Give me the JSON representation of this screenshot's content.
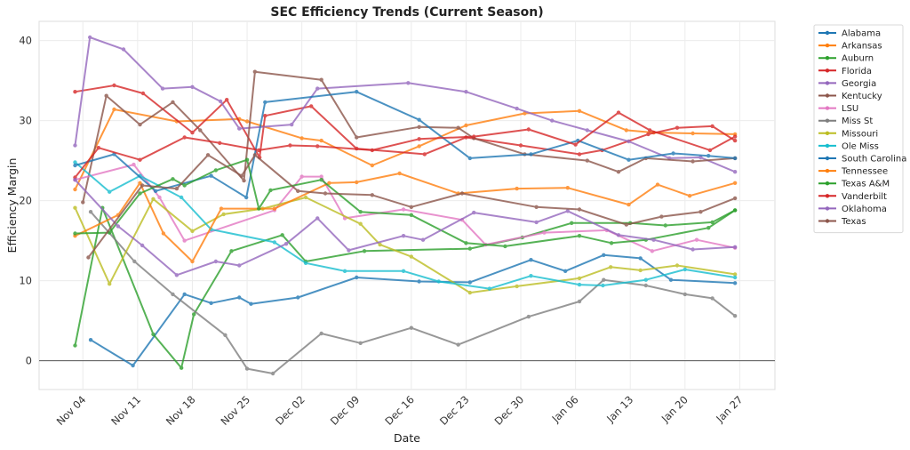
{
  "chart_data": {
    "type": "line",
    "title": "SEC Efficiency Trends (Current Season)",
    "xlabel": "Date",
    "ylabel": "Efficiency Margin",
    "x_unit": "days since Nov 04",
    "xlim": [
      -5.6,
      88.5
    ],
    "ylim": [
      -3.6,
      42.4
    ],
    "yticks": [
      0,
      10,
      20,
      30,
      40
    ],
    "xticks": [
      {
        "day": 0,
        "label": "Nov 04"
      },
      {
        "day": 7,
        "label": "Nov 11"
      },
      {
        "day": 14,
        "label": "Nov 18"
      },
      {
        "day": 21,
        "label": "Nov 25"
      },
      {
        "day": 28,
        "label": "Dec 02"
      },
      {
        "day": 35,
        "label": "Dec 09"
      },
      {
        "day": 42,
        "label": "Dec 16"
      },
      {
        "day": 49,
        "label": "Dec 23"
      },
      {
        "day": 56,
        "label": "Dec 30"
      },
      {
        "day": 63,
        "label": "Jan 06"
      },
      {
        "day": 70,
        "label": "Jan 13"
      },
      {
        "day": 77,
        "label": "Jan 20"
      },
      {
        "day": 84,
        "label": "Jan 27"
      }
    ],
    "grid": true,
    "zero_line": true,
    "legend_position": "outside-top-right",
    "series": [
      {
        "name": "Alabama",
        "color": "#1f77b4",
        "x": [
          1,
          6.4,
          13,
          16.4,
          20,
          21.5,
          27.5,
          35,
          43,
          49.5,
          57.3,
          61.7,
          66.6,
          71.3,
          75.2,
          83.4
        ],
        "y": [
          2.6,
          -0.6,
          8.3,
          7.2,
          7.9,
          7.1,
          7.9,
          10.4,
          9.9,
          9.8,
          12.6,
          11.2,
          13.2,
          12.8,
          10.1,
          9.7
        ]
      },
      {
        "name": "Arkansas",
        "color": "#ff7f0e",
        "x": [
          -1,
          4,
          12,
          20,
          21,
          28,
          30.5,
          37,
          43,
          49,
          56.5,
          63.5,
          69.5,
          73,
          78,
          83.4
        ],
        "y": [
          21.4,
          31.4,
          29.9,
          30.2,
          29.9,
          27.8,
          27.5,
          24.4,
          26.8,
          29.4,
          30.9,
          31.2,
          28.8,
          28.5,
          28.4,
          28.3
        ]
      },
      {
        "name": "Auburn",
        "color": "#2ca02c",
        "x": [
          -1,
          2.5,
          9,
          12.6,
          14.2,
          19,
          25.5,
          28.5,
          36,
          49.5,
          56.2,
          62.5,
          70,
          74.5,
          80.5,
          83.4
        ],
        "y": [
          1.9,
          19.1,
          3.3,
          -0.9,
          5.8,
          13.7,
          15.7,
          12.4,
          13.7,
          14.0,
          15.4,
          17.2,
          17.2,
          16.9,
          17.3,
          18.8
        ]
      },
      {
        "name": "Florida",
        "color": "#d62728",
        "x": [
          -1,
          4,
          7.7,
          14,
          18.4,
          22.6,
          23.3,
          29.2,
          35,
          43.7,
          49,
          56,
          63.5,
          66.4,
          72.3,
          76,
          80.5,
          83.4
        ],
        "y": [
          33.6,
          34.4,
          33.4,
          28.5,
          32.6,
          25.4,
          30.6,
          31.8,
          26.5,
          25.8,
          27.9,
          26.9,
          25.8,
          26.3,
          28.3,
          29.1,
          29.3,
          27.5
        ]
      },
      {
        "name": "Georgia",
        "color": "#9467bd",
        "x": [
          -1,
          0.9,
          5.2,
          10.2,
          14,
          17.6,
          20,
          26.7,
          30,
          41.6,
          49,
          55.5,
          60,
          64.5,
          69.8,
          75,
          79,
          83.4
        ],
        "y": [
          26.9,
          40.4,
          38.9,
          34.0,
          34.2,
          32.4,
          29.0,
          29.5,
          34.0,
          34.7,
          33.6,
          31.5,
          30.0,
          28.8,
          27.4,
          25.3,
          25.4,
          23.6
        ]
      },
      {
        "name": "Kentucky",
        "color": "#8c564b",
        "x": [
          0,
          3,
          7.3,
          11.5,
          15,
          20.6,
          22,
          30.5,
          35,
          43,
          48,
          50,
          56.5,
          64.5,
          68.5,
          72,
          78,
          83.4
        ],
        "y": [
          19.8,
          33.1,
          29.5,
          32.3,
          28.8,
          22.5,
          36.1,
          35.1,
          27.9,
          29.2,
          29.1,
          27.8,
          25.8,
          25.0,
          23.6,
          25.3,
          24.9,
          25.3
        ]
      },
      {
        "name": "LSU",
        "color": "#e377c2",
        "x": [
          -1,
          6.5,
          9.8,
          13,
          24.5,
          28,
          30.5,
          33.5,
          41,
          48.5,
          51.5,
          59,
          67,
          72.8,
          78.5,
          83.4
        ],
        "y": [
          22.6,
          24.5,
          20.4,
          15.0,
          18.8,
          23.0,
          23.0,
          17.8,
          18.9,
          17.6,
          14.5,
          16.0,
          16.3,
          13.7,
          15.1,
          14.1
        ]
      },
      {
        "name": "Miss St",
        "color": "#7f7f7f",
        "x": [
          1,
          6.6,
          11.5,
          18.2,
          21,
          24.3,
          30.5,
          35.5,
          42,
          48,
          57,
          63.5,
          66.6,
          72,
          77,
          80.5,
          83.4
        ],
        "y": [
          18.6,
          12.4,
          8.3,
          3.2,
          -1.0,
          -1.6,
          3.4,
          2.2,
          4.1,
          2.0,
          5.5,
          7.4,
          10.1,
          9.4,
          8.3,
          7.8,
          5.6
        ]
      },
      {
        "name": "Missouri",
        "color": "#bcbd22",
        "x": [
          -1,
          3.4,
          9,
          14,
          18,
          23,
          28.5,
          35.5,
          38,
          42,
          49.5,
          55.5,
          63.5,
          67.5,
          71.3,
          76,
          83.4
        ],
        "y": [
          19.1,
          9.6,
          20.2,
          16.2,
          18.3,
          19.0,
          20.4,
          17.1,
          14.5,
          13.0,
          8.5,
          9.3,
          10.3,
          11.7,
          11.3,
          11.9,
          10.8
        ]
      },
      {
        "name": "Ole Miss",
        "color": "#17becf",
        "x": [
          -1,
          3.4,
          7.3,
          12.6,
          16.4,
          24.5,
          28.5,
          33.5,
          41,
          45.5,
          52,
          57.3,
          63.5,
          66.5,
          72,
          77,
          83.4
        ],
        "y": [
          24.8,
          21.1,
          23.1,
          20.4,
          16.4,
          14.8,
          12.2,
          11.2,
          11.2,
          9.9,
          9.0,
          10.6,
          9.5,
          9.4,
          10.1,
          11.4,
          10.4
        ]
      },
      {
        "name": "South Carolina",
        "color": "#1f77b4",
        "x": [
          -1,
          4,
          9.3,
          16.4,
          20.9,
          23.3,
          35,
          43,
          49.5,
          57.3,
          63.3,
          69.8,
          75.5,
          80,
          83.4
        ],
        "y": [
          24.4,
          25.8,
          21.2,
          23.1,
          20.4,
          32.3,
          33.6,
          30.1,
          25.3,
          25.8,
          27.5,
          25.1,
          25.9,
          25.6,
          25.3
        ]
      },
      {
        "name": "Tennessee",
        "color": "#ff7f0e",
        "x": [
          -1,
          4.5,
          7.3,
          10.3,
          14,
          17.7,
          24.5,
          31.5,
          35,
          40.5,
          48,
          55.5,
          62,
          69.8,
          73.5,
          77.6,
          83.4
        ],
        "y": [
          15.6,
          18.2,
          22.2,
          15.9,
          12.4,
          19.0,
          19.0,
          22.2,
          22.3,
          23.4,
          20.9,
          21.5,
          21.6,
          19.5,
          22.0,
          20.6,
          22.2
        ]
      },
      {
        "name": "Texas A&M",
        "color": "#2ca02c",
        "x": [
          -1,
          3.4,
          7.3,
          11.5,
          13,
          17,
          21,
          22.5,
          24,
          30.5,
          35.5,
          42,
          49,
          54,
          63.5,
          67.6,
          72,
          80,
          83.4
        ],
        "y": [
          15.9,
          16.0,
          20.9,
          22.7,
          21.9,
          23.8,
          25.1,
          19.0,
          21.3,
          22.6,
          18.6,
          18.2,
          14.7,
          14.3,
          15.6,
          14.7,
          15.1,
          16.6,
          18.8
        ]
      },
      {
        "name": "Vanderbilt",
        "color": "#d62728",
        "x": [
          -1,
          2,
          7.3,
          13,
          17.5,
          22.5,
          26.5,
          30,
          37,
          43,
          50,
          57,
          63,
          68.5,
          72.5,
          80.2,
          83.4
        ],
        "y": [
          22.9,
          26.6,
          25.1,
          27.9,
          27.2,
          26.3,
          26.9,
          26.8,
          26.3,
          27.7,
          28.0,
          28.9,
          27.0,
          31.0,
          28.8,
          26.3,
          28.0
        ]
      },
      {
        "name": "Oklahoma",
        "color": "#9467bd",
        "x": [
          -1,
          4.5,
          7.6,
          12,
          17,
          20,
          26,
          30,
          34,
          41,
          43.5,
          50,
          58,
          62,
          68.5,
          73,
          78,
          83.4
        ],
        "y": [
          22.6,
          16.8,
          14.4,
          10.7,
          12.4,
          11.9,
          14.6,
          17.8,
          13.8,
          15.6,
          15.1,
          18.5,
          17.3,
          18.7,
          15.7,
          15.1,
          13.9,
          14.2
        ]
      },
      {
        "name": "Texas",
        "color": "#8c564b",
        "x": [
          0.7,
          7.6,
          12,
          16,
          20.3,
          22,
          27.5,
          31,
          37,
          42,
          48.5,
          58,
          63.5,
          69.5,
          74,
          79,
          83.4
        ],
        "y": [
          12.9,
          21.9,
          21.5,
          25.7,
          23.1,
          25.7,
          21.2,
          20.9,
          20.7,
          19.2,
          20.9,
          19.2,
          18.9,
          17.0,
          18.0,
          18.6,
          20.3
        ]
      }
    ]
  }
}
